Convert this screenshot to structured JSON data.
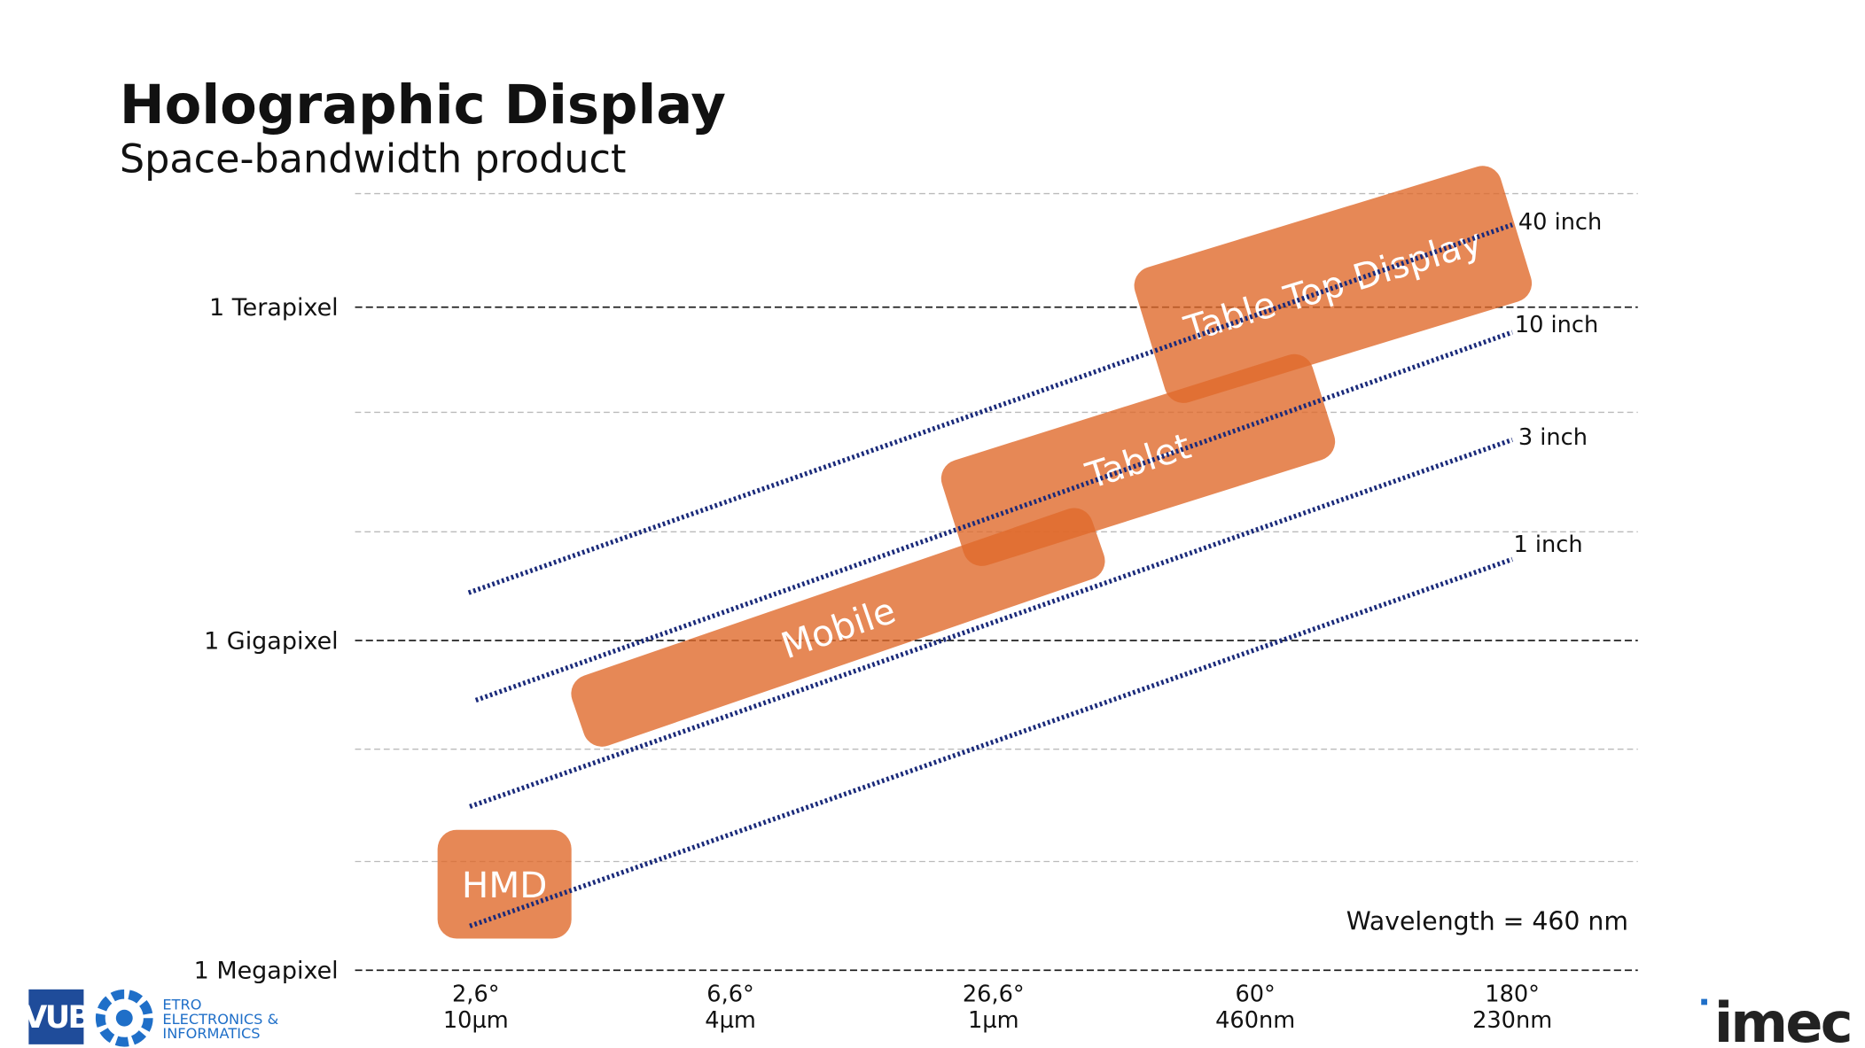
{
  "header": {
    "title": "Holographic Display",
    "subtitle": "Space-bandwidth product"
  },
  "y_labels": [
    "1 Terapixel",
    "1 Gigapixel",
    "1 Megapixel"
  ],
  "x_labels": [
    [
      "2,6°",
      "10µm"
    ],
    [
      "6,6°",
      "4µm"
    ],
    [
      "26,6°",
      "1µm"
    ],
    [
      "60°",
      "460nm"
    ],
    [
      "180°",
      "230nm"
    ]
  ],
  "diagonals": [
    "40 inch",
    "10 inch",
    "3 inch",
    "1 inch"
  ],
  "regions": [
    "HMD",
    "Mobile",
    "Tablet",
    "Table Top Display"
  ],
  "note": "Wavelength = 460 nm",
  "logos": {
    "vub": "VUB",
    "etro": [
      "ETRO",
      "ELECTRONICS &",
      "INFORMATICS"
    ],
    "imec": "imec"
  }
}
